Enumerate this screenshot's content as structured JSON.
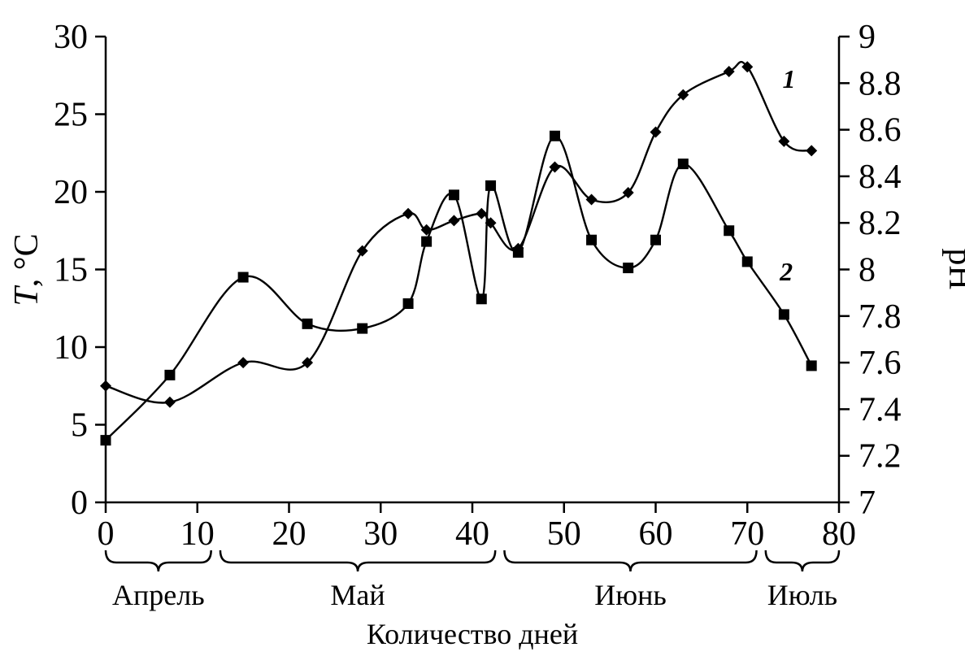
{
  "chart_data": {
    "type": "line",
    "title": "",
    "xlabel": "Количество дней",
    "ylabel_left": "T, °C",
    "ylabel_right": "pH",
    "xlim": [
      0,
      80
    ],
    "x_ticks": [
      0,
      10,
      20,
      30,
      40,
      50,
      60,
      70,
      80
    ],
    "ylim_left": [
      0,
      30
    ],
    "y_ticks_left": [
      0,
      5,
      10,
      15,
      20,
      25,
      30
    ],
    "ylim_right": [
      7,
      9
    ],
    "y_ticks_right": [
      "7",
      "7.2",
      "7.4",
      "7.6",
      "7.8",
      "8",
      "8.2",
      "8.4",
      "8.6",
      "8.8",
      "9"
    ],
    "grid": false,
    "legend_position": "none",
    "x": [
      0,
      7,
      15,
      22,
      28,
      33,
      35,
      38,
      41,
      42,
      45,
      49,
      53,
      57,
      60,
      63,
      68,
      70,
      74,
      77
    ],
    "series": [
      {
        "name": "1",
        "axis": "right",
        "marker": "diamond",
        "values": [
          7.5,
          7.43,
          7.6,
          7.6,
          8.08,
          8.24,
          8.17,
          8.21,
          8.24,
          8.2,
          8.09,
          8.44,
          8.3,
          8.33,
          8.59,
          8.75,
          8.85,
          8.87,
          8.55,
          8.51
        ]
      },
      {
        "name": "2",
        "axis": "left",
        "marker": "square",
        "values": [
          4.0,
          8.2,
          14.5,
          11.5,
          11.2,
          12.8,
          16.8,
          19.8,
          13.1,
          20.4,
          16.1,
          23.6,
          16.9,
          15.1,
          16.9,
          21.8,
          17.5,
          15.5,
          12.1,
          8.8
        ]
      }
    ],
    "annotations": [
      {
        "text": "1",
        "x": 73.3,
        "axis": "right",
        "y": 8.78
      },
      {
        "text": "2",
        "x": 73.0,
        "axis": "left",
        "y": 14.3
      }
    ],
    "month_brackets": [
      {
        "label": "Апрель",
        "from": 0,
        "to": 11.5
      },
      {
        "label": "Май",
        "from": 12.5,
        "to": 42.5
      },
      {
        "label": "Июнь",
        "from": 43.5,
        "to": 71.0
      },
      {
        "label": "Июль",
        "from": 72.0,
        "to": 80.0
      }
    ],
    "line_color": "#000000",
    "marker_color": "#000000"
  }
}
